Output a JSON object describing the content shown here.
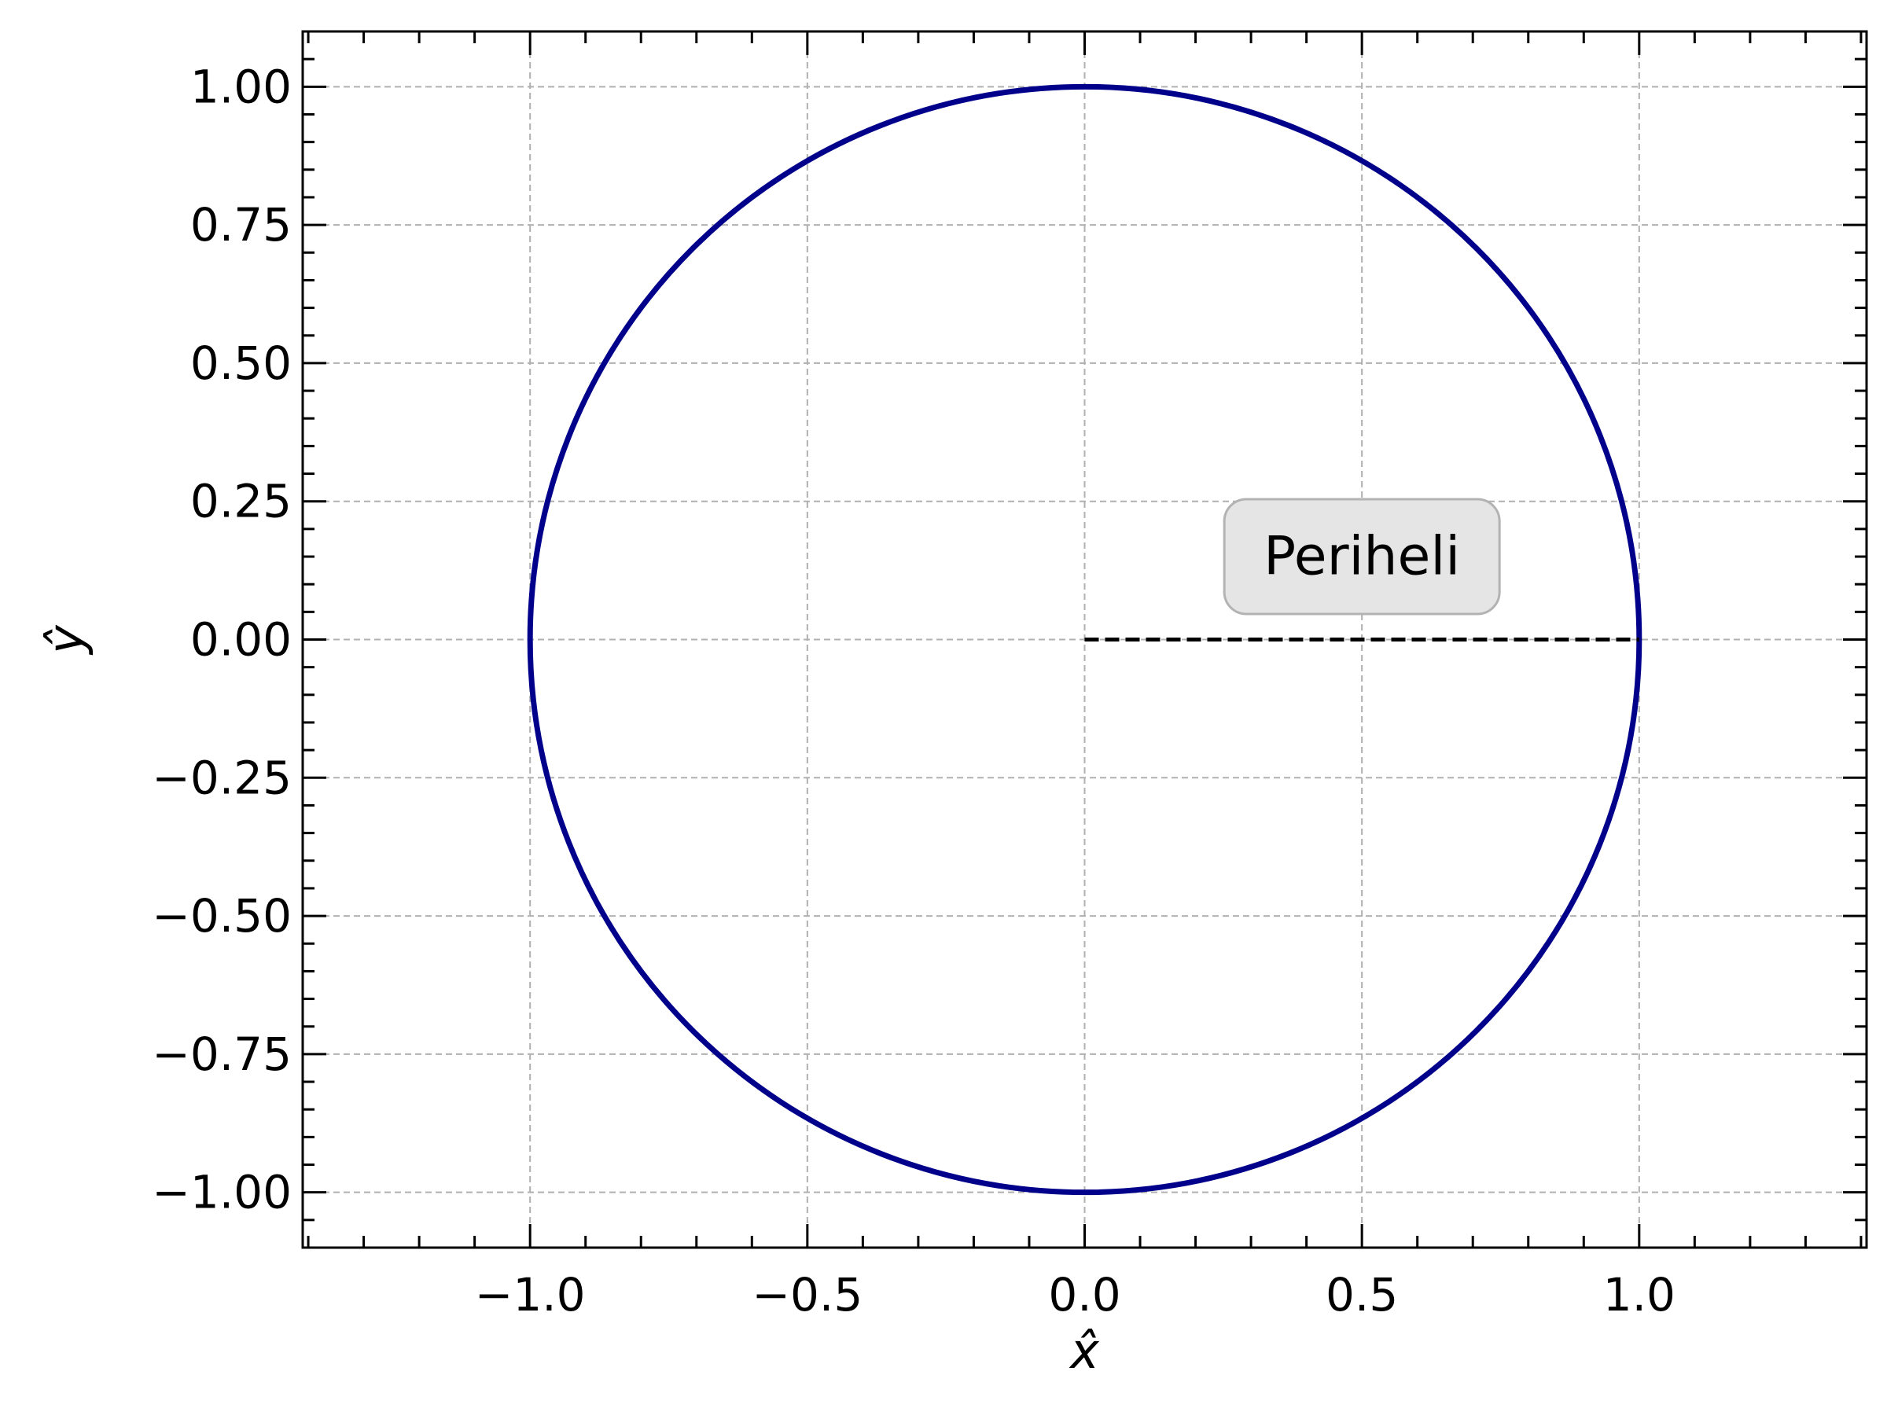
{
  "chart_data": {
    "type": "line",
    "title": "",
    "xlabel": "x̂",
    "ylabel": "ŷ",
    "xlim": [
      -1.41,
      1.41
    ],
    "ylim": [
      -1.1,
      1.1
    ],
    "grid": true,
    "x_ticks": [
      -1.0,
      -0.5,
      0.0,
      0.5,
      1.0
    ],
    "x_tick_labels": [
      "−1.0",
      "−0.5",
      "0.0",
      "0.5",
      "1.0"
    ],
    "x_minor_step": 0.1,
    "y_ticks": [
      1.0,
      0.75,
      0.5,
      0.25,
      0.0,
      -0.25,
      -0.5,
      -0.75,
      -1.0
    ],
    "y_tick_labels": [
      "1.00",
      "0.75",
      "0.50",
      "0.25",
      "0.00",
      "−0.25",
      "−0.50",
      "−0.75",
      "−1.00"
    ],
    "y_minor_step": 0.05,
    "series": [
      {
        "name": "orbit",
        "kind": "circle",
        "center": [
          0.0,
          0.0
        ],
        "radius": 1.0,
        "color": "#00008b",
        "style": "solid"
      },
      {
        "name": "perihelion-line",
        "kind": "segment",
        "x": [
          0.0,
          1.0
        ],
        "y": [
          0.0,
          0.0
        ],
        "color": "#000000",
        "style": "dashed"
      }
    ],
    "annotations": [
      {
        "text": "Periheli",
        "x": 0.5,
        "y": 0.15,
        "box_color": "#e5e5e5",
        "box_edge": "#b3b3b3"
      }
    ]
  }
}
